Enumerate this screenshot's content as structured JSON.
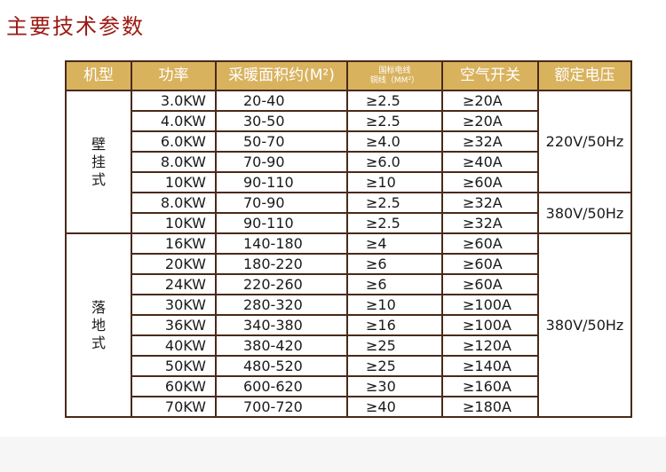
{
  "title": "主要技术参数",
  "headers": [
    "机型",
    "功率",
    "采暖面积约(M²)",
    "国标电线",
    "铜线（MM²）",
    "空气开关",
    "额定电压"
  ],
  "groups": [
    {
      "type": "壁\n挂\n式",
      "voltages": [
        {
          "label": "220V/50Hz",
          "span": 5
        },
        {
          "label": "380V/50Hz",
          "span": 2
        }
      ],
      "rows": [
        [
          "3.0KW",
          "20-40",
          "≥2.5",
          "≥20A"
        ],
        [
          "4.0KW",
          "30-50",
          "≥2.5",
          "≥20A"
        ],
        [
          "6.0KW",
          "50-70",
          "≥4.0",
          "≥32A"
        ],
        [
          "8.0KW",
          "70-90",
          "≥6.0",
          "≥40A"
        ],
        [
          "10KW",
          "90-110",
          "≥10",
          "≥60A"
        ],
        [
          "8.0KW",
          "70-90",
          "≥2.5",
          "≥32A"
        ],
        [
          "10KW",
          "90-110",
          "≥2.5",
          "≥32A"
        ]
      ]
    },
    {
      "type": "落\n地\n式",
      "voltages": [
        {
          "label": "380V/50Hz",
          "span": 9
        }
      ],
      "rows": [
        [
          "16KW",
          "140-180",
          "≥4",
          "≥60A"
        ],
        [
          "20KW",
          "180-220",
          "≥6",
          "≥60A"
        ],
        [
          "24KW",
          "220-260",
          "≥6",
          "≥60A"
        ],
        [
          "30KW",
          "280-320",
          "≥10",
          "≥100A"
        ],
        [
          "36KW",
          "340-380",
          "≥16",
          "≥100A"
        ],
        [
          "40KW",
          "380-420",
          "≥25",
          "≥120A"
        ],
        [
          "50KW",
          "480-520",
          "≥25",
          "≥140A"
        ],
        [
          "60KW",
          "600-620",
          "≥30",
          "≥160A"
        ],
        [
          "70KW",
          "700-720",
          "≥40",
          "≥180A"
        ]
      ]
    }
  ],
  "colors": {
    "header_bg": "#d9b25e",
    "border": "#4a2a1a",
    "title": "#9b1a14"
  }
}
